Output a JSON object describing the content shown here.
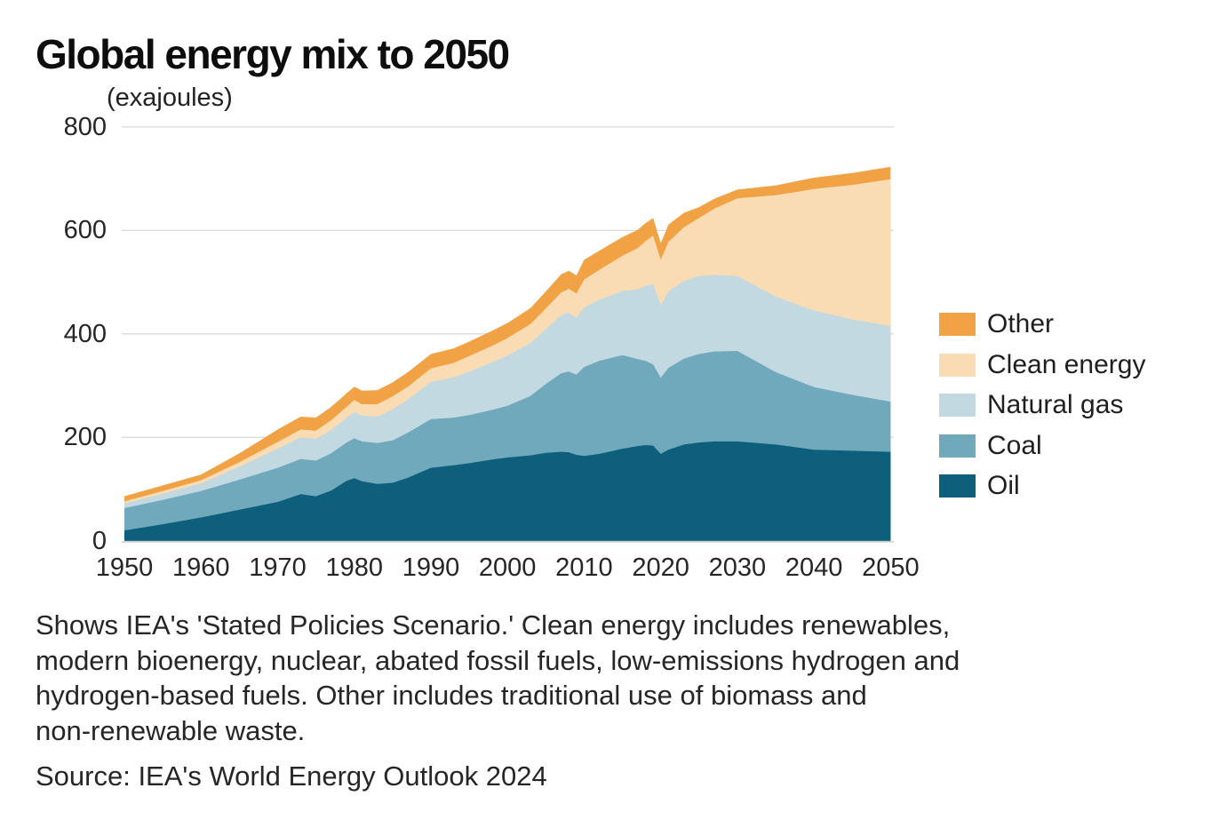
{
  "title": "Global energy mix to 2050",
  "unit_label": "(exajoules)",
  "footnote": {
    "lines": [
      "Shows IEA's 'Stated Policies Scenario.' Clean energy includes renewables,",
      "modern bioenergy, nuclear, abated fossil fuels, low-emissions hydrogen and",
      "hydrogen-based fuels. Other includes traditional use of biomass and",
      "non-renewable waste."
    ],
    "full_text": "Shows IEA's 'Stated Policies Scenario.' Clean energy includes renewables, modern bioenergy, nuclear, abated fossil fuels, low-emissions hydrogen and hydrogen-based fuels. Other includes traditional use of biomass and non-renewable waste."
  },
  "source": "Source: IEA's World Energy Outlook 2024",
  "colors": {
    "oil": "#0E5F7B",
    "coal": "#6FA9BB",
    "natural_gas": "#C2D9E2",
    "clean_energy": "#F9DCB4",
    "other": "#F0A244",
    "gridline": "#D9D9D9",
    "baseline": "#BFBFBF"
  },
  "chart_data": {
    "type": "area",
    "stacked": true,
    "title": "Global energy mix to 2050",
    "ylabel": "(exajoules)",
    "xlabel": "",
    "grid": true,
    "legend_position": "right",
    "ylim": [
      0,
      800
    ],
    "yticks": [
      0,
      200,
      400,
      600,
      800
    ],
    "xticks": [
      1950,
      1960,
      1970,
      1980,
      1990,
      2000,
      2010,
      2020,
      2030,
      2040,
      2050
    ],
    "x": [
      1950,
      1955,
      1960,
      1965,
      1970,
      1973,
      1975,
      1977,
      1979,
      1980,
      1981,
      1983,
      1985,
      1987,
      1990,
      1993,
      1995,
      1998,
      2000,
      2003,
      2005,
      2007,
      2008,
      2009,
      2010,
      2012,
      2015,
      2017,
      2018,
      2019,
      2020,
      2021,
      2023,
      2025,
      2027,
      2030,
      2035,
      2040,
      2045,
      2050
    ],
    "series": [
      {
        "name": "Oil",
        "color_key": "oil",
        "values": [
          20,
          32,
          45,
          60,
          75,
          90,
          86,
          97,
          116,
          121,
          115,
          110,
          112,
          122,
          141,
          146,
          150,
          157,
          161,
          165,
          170,
          172,
          171,
          166,
          164,
          168,
          178,
          183,
          185,
          184,
          168,
          176,
          186,
          190,
          192,
          192,
          186,
          176,
          174,
          172
        ]
      },
      {
        "name": "Coal",
        "color_key": "coal",
        "values": [
          43,
          47,
          51,
          58,
          66,
          68,
          69,
          72,
          74,
          77,
          77,
          79,
          82,
          87,
          94,
          92,
          93,
          96,
          100,
          115,
          133,
          152,
          156,
          155,
          172,
          180,
          181,
          168,
          163,
          157,
          147,
          158,
          166,
          171,
          174,
          175,
          140,
          121,
          108,
          97
        ]
      },
      {
        "name": "Natural gas",
        "color_key": "natural_gas",
        "values": [
          9,
          12,
          15,
          25,
          37,
          42,
          42,
          45,
          48,
          51,
          50,
          51,
          60,
          64,
          72,
          78,
          84,
          92,
          97,
          102,
          106,
          112,
          114,
          110,
          115,
          118,
          124,
          135,
          145,
          155,
          140,
          148,
          150,
          151,
          148,
          145,
          146,
          148,
          146,
          146
        ]
      },
      {
        "name": "Clean energy",
        "color_key": "clean_energy",
        "values": [
          4,
          5,
          6,
          9,
          13,
          15,
          16,
          19,
          21,
          23,
          22,
          24,
          25,
          25,
          26,
          28,
          30,
          32,
          34,
          37,
          40,
          44,
          46,
          47,
          54,
          58,
          68,
          80,
          86,
          94,
          88,
          96,
          104,
          112,
          128,
          150,
          196,
          235,
          260,
          284
        ]
      },
      {
        "name": "Other",
        "color_key": "other",
        "values": [
          10,
          11,
          11,
          17,
          24,
          25,
          25,
          26,
          26,
          26,
          26,
          27,
          27,
          28,
          28,
          28,
          28,
          29,
          29,
          31,
          33,
          35,
          35,
          35,
          38,
          37,
          36,
          35,
          35,
          34,
          32,
          33,
          28,
          21,
          19,
          17,
          19,
          22,
          23,
          24
        ]
      }
    ],
    "legend_order_top_to_bottom": [
      "Other",
      "Clean energy",
      "Natural gas",
      "Coal",
      "Oil"
    ]
  }
}
